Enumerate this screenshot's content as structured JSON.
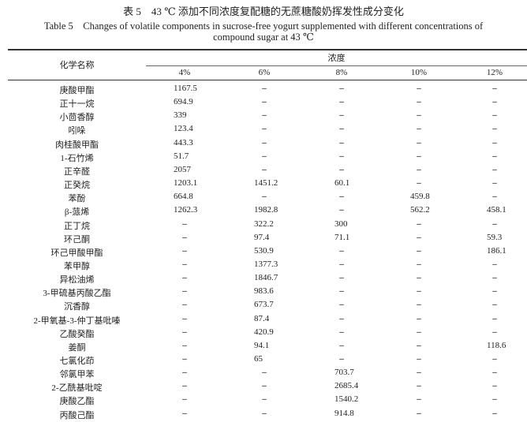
{
  "title_cn": "表 5　43 ℃ 添加不同浓度复配糖的无蔗糖酸奶挥发性成分变化",
  "title_en_line1": "Table 5　Changes of volatile components in sucrose-free yogurt supplemented with different concentrations of",
  "title_en_line2": "compound sugar at 43 ℃",
  "table": {
    "name_header": "化学名称",
    "group_header": "浓度",
    "columns": [
      "4%",
      "6%",
      "8%",
      "10%",
      "12%"
    ],
    "rows": [
      {
        "name": "庚酸甲酯",
        "values": [
          "1167.5",
          "–",
          "–",
          "–",
          "–"
        ]
      },
      {
        "name": "正十一烷",
        "values": [
          "694.9",
          "–",
          "–",
          "–",
          "–"
        ]
      },
      {
        "name": "小茴香醇",
        "values": [
          "339",
          "–",
          "–",
          "–",
          "–"
        ]
      },
      {
        "name": "吲哚",
        "values": [
          "123.4",
          "–",
          "–",
          "–",
          "–"
        ]
      },
      {
        "name": "肉桂酸甲酯",
        "values": [
          "443.3",
          "–",
          "–",
          "–",
          "–"
        ]
      },
      {
        "name": "1-石竹烯",
        "values": [
          "51.7",
          "–",
          "–",
          "–",
          "–"
        ]
      },
      {
        "name": "正辛醛",
        "values": [
          "2057",
          "–",
          "–",
          "–",
          "–"
        ]
      },
      {
        "name": "正癸烷",
        "values": [
          "1203.1",
          "1451.2",
          "60.1",
          "–",
          "–"
        ]
      },
      {
        "name": "苯酚",
        "values": [
          "664.8",
          "–",
          "–",
          "459.8",
          "–"
        ]
      },
      {
        "name": "β-蒎烯",
        "values": [
          "1262.3",
          "1982.8",
          "–",
          "562.2",
          "458.1"
        ]
      },
      {
        "name": "正丁烷",
        "values": [
          "–",
          "322.2",
          "300",
          "–",
          "–"
        ]
      },
      {
        "name": "环己酮",
        "values": [
          "–",
          "97.4",
          "71.1",
          "–",
          "59.3"
        ]
      },
      {
        "name": "环己甲酸甲酯",
        "values": [
          "–",
          "530.9",
          "–",
          "–",
          "186.1"
        ]
      },
      {
        "name": "苯甲醇",
        "values": [
          "–",
          "1377.3",
          "–",
          "–",
          "–"
        ]
      },
      {
        "name": "异松油烯",
        "values": [
          "–",
          "1846.7",
          "–",
          "–",
          "–"
        ]
      },
      {
        "name": "3-甲硫基丙酸乙酯",
        "values": [
          "–",
          "983.6",
          "–",
          "–",
          "–"
        ]
      },
      {
        "name": "沉香醇",
        "values": [
          "–",
          "673.7",
          "–",
          "–",
          "–"
        ]
      },
      {
        "name": "2-甲氧基-3-仲丁基吡嗪",
        "values": [
          "–",
          "87.4",
          "–",
          "–",
          "–"
        ]
      },
      {
        "name": "乙酸癸酯",
        "values": [
          "–",
          "420.9",
          "–",
          "–",
          "–"
        ]
      },
      {
        "name": "姜酮",
        "values": [
          "–",
          "94.1",
          "–",
          "–",
          "118.6"
        ]
      },
      {
        "name": "七氯化茚",
        "values": [
          "–",
          "65",
          "–",
          "–",
          "–"
        ]
      },
      {
        "name": "邻氯甲苯",
        "values": [
          "–",
          "–",
          "703.7",
          "–",
          "–"
        ]
      },
      {
        "name": "2-乙酰基吡啶",
        "values": [
          "–",
          "–",
          "2685.4",
          "–",
          "–"
        ]
      },
      {
        "name": "庚酸乙酯",
        "values": [
          "–",
          "–",
          "1540.2",
          "–",
          "–"
        ]
      },
      {
        "name": "丙酸己酯",
        "values": [
          "–",
          "–",
          "914.8",
          "–",
          "–"
        ]
      }
    ]
  }
}
